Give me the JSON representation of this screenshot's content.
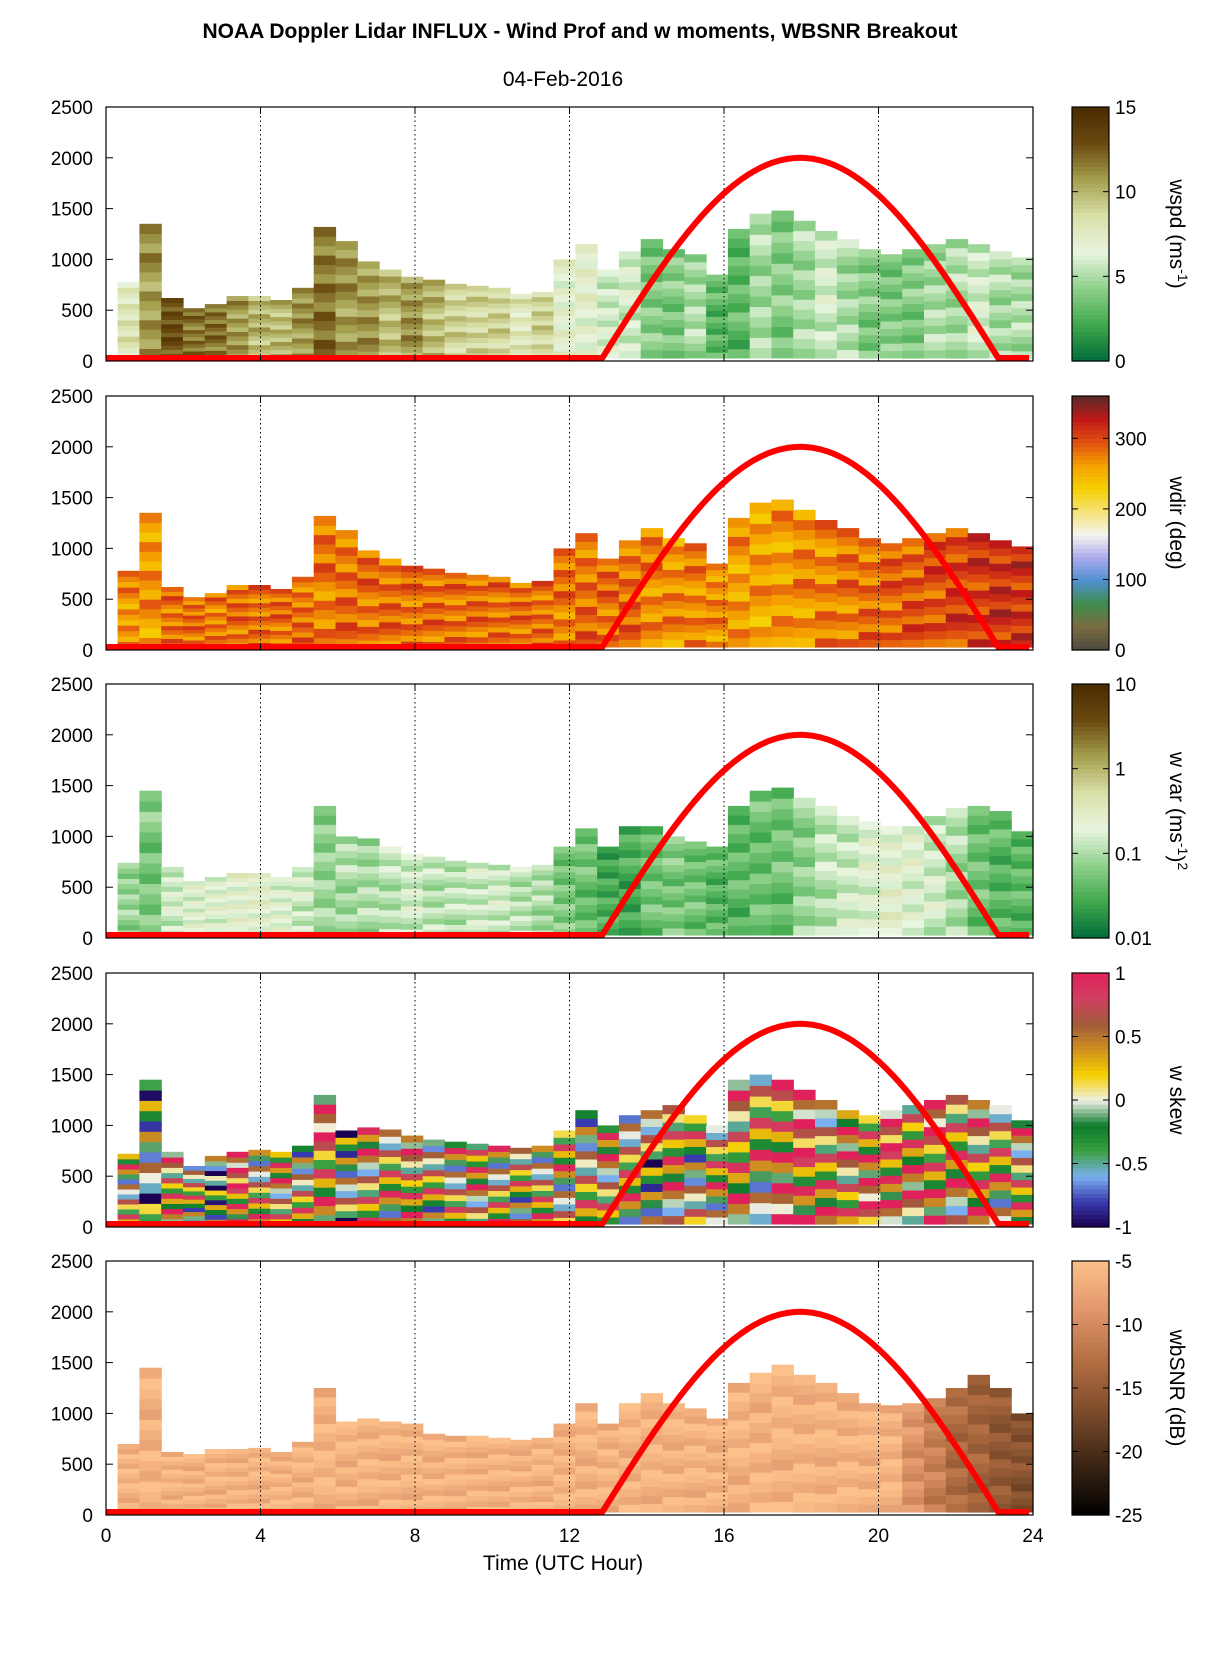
{
  "title": "NOAA Doppler Lidar INFLUX - Wind Prof and w moments, WBSNR Breakout",
  "subtitle": "04-Feb-2016",
  "xlabel": "Time (UTC Hour)",
  "chart_data": [
    {
      "type": "heatmap",
      "field": "wspd",
      "colorbar_label": "wspd (ms-1)",
      "colorbar_label_base": "wspd (ms",
      "colorbar_label_sup": "-1",
      "colorbar_label_end": ")",
      "colorbar_ticks": [
        "15",
        "10",
        "5",
        "0"
      ],
      "clim": [
        0,
        15
      ],
      "colormap": [
        "#006b3a",
        "#3fa84c",
        "#8ed08a",
        "#e9f5e0",
        "#d9e0a8",
        "#a4a04e",
        "#6b4a10",
        "#4a2a00"
      ],
      "ylim": [
        0,
        2500
      ],
      "yticks": [
        "2500",
        "2000",
        "1500",
        "1000",
        "500",
        "0"
      ],
      "top_heights_m": [
        780,
        1350,
        620,
        520,
        560,
        640,
        640,
        600,
        720,
        1320,
        1180,
        980,
        900,
        830,
        800,
        760,
        740,
        720,
        660,
        680,
        1000,
        1150,
        900,
        1080,
        1200,
        1100,
        1050,
        850,
        1300,
        1450,
        1480,
        1380,
        1280,
        1200,
        1100,
        1050,
        1100,
        1150,
        1200,
        1150,
        1080,
        1020
      ],
      "cell_values": [
        8,
        11,
        13,
        12,
        12,
        11,
        10,
        10,
        11,
        12,
        11,
        11,
        10,
        11,
        10,
        9,
        9,
        9,
        8,
        9,
        7,
        7,
        6,
        6,
        4,
        4,
        5,
        3,
        3,
        5,
        4,
        5,
        6,
        5,
        4,
        4,
        4,
        5,
        5,
        6,
        5,
        5
      ]
    },
    {
      "type": "heatmap",
      "field": "wdir",
      "colorbar_label": "wdir (deg)",
      "colorbar_ticks": [
        "300",
        "200",
        "100",
        "0"
      ],
      "clim": [
        0,
        360
      ],
      "colormap": [
        "#4a4a40",
        "#7a6a40",
        "#3e8c4a",
        "#4f8fd0",
        "#aaaaee",
        "#f5f5f0",
        "#f5e27a",
        "#f5d000",
        "#f5a000",
        "#e05010",
        "#c01818",
        "#5a2a2a"
      ],
      "ylim": [
        0,
        2500
      ],
      "yticks": [
        "2500",
        "2000",
        "1500",
        "1000",
        "500",
        "0"
      ],
      "top_heights_m": [
        780,
        1350,
        620,
        520,
        560,
        640,
        640,
        600,
        720,
        1320,
        1180,
        980,
        900,
        830,
        800,
        760,
        740,
        720,
        660,
        680,
        1000,
        1150,
        900,
        1080,
        1200,
        1100,
        1050,
        850,
        1300,
        1450,
        1480,
        1380,
        1280,
        1200,
        1100,
        1050,
        1100,
        1150,
        1200,
        1150,
        1080,
        1020
      ],
      "cell_values": [
        270,
        265,
        285,
        285,
        280,
        285,
        285,
        285,
        285,
        280,
        285,
        285,
        285,
        285,
        285,
        285,
        285,
        285,
        285,
        285,
        280,
        285,
        285,
        285,
        275,
        270,
        275,
        270,
        265,
        260,
        265,
        270,
        275,
        280,
        285,
        290,
        295,
        300,
        305,
        310,
        315,
        315
      ]
    },
    {
      "type": "heatmap",
      "field": "w var",
      "colorbar_label": "w var (ms-1)2",
      "colorbar_label_base": "w var (ms",
      "colorbar_label_sup": "-1",
      "colorbar_label_end": ")",
      "colorbar_label_sup2": "2",
      "colorbar_ticks": [
        "10",
        "1",
        "0.1",
        "0.01"
      ],
      "clim": [
        0.01,
        10
      ],
      "log_scale": true,
      "colormap": [
        "#006b3a",
        "#3fa84c",
        "#8ed08a",
        "#e9f5e0",
        "#d9e0a8",
        "#a4a04e",
        "#6b4a10",
        "#4a2a00"
      ],
      "ylim": [
        0,
        2500
      ],
      "yticks": [
        "2500",
        "2000",
        "1500",
        "1000",
        "500",
        "0"
      ],
      "top_heights_m": [
        740,
        1450,
        700,
        560,
        600,
        640,
        640,
        600,
        700,
        1300,
        1000,
        980,
        900,
        830,
        800,
        760,
        740,
        720,
        700,
        720,
        900,
        1080,
        900,
        1100,
        1100,
        1000,
        950,
        900,
        1300,
        1450,
        1480,
        1380,
        1300,
        1200,
        1150,
        1100,
        1100,
        1200,
        1280,
        1300,
        1250,
        1050
      ],
      "cell_values": [
        0.08,
        0.06,
        0.15,
        0.2,
        0.2,
        0.25,
        0.25,
        0.2,
        0.15,
        0.08,
        0.1,
        0.1,
        0.12,
        0.15,
        0.12,
        0.12,
        0.15,
        0.15,
        0.12,
        0.1,
        0.06,
        0.05,
        0.03,
        0.03,
        0.05,
        0.06,
        0.05,
        0.04,
        0.04,
        0.05,
        0.05,
        0.08,
        0.12,
        0.15,
        0.2,
        0.25,
        0.2,
        0.15,
        0.1,
        0.05,
        0.04,
        0.04
      ]
    },
    {
      "type": "heatmap",
      "field": "w skew",
      "colorbar_label": "w skew",
      "colorbar_ticks": [
        "1",
        "0.5",
        "0",
        "-0.5",
        "-1"
      ],
      "clim": [
        -1,
        1
      ],
      "colormap": [
        "#1a0050",
        "#3a3ab0",
        "#7ab0f0",
        "#3aa040",
        "#0a7a2a",
        "#f0f0e8",
        "#f5d000",
        "#d09020",
        "#a05a3a",
        "#d04060",
        "#e0205a"
      ],
      "ylim": [
        0,
        2500
      ],
      "yticks": [
        "2500",
        "2000",
        "1500",
        "1000",
        "500",
        "0"
      ],
      "top_heights_m": [
        720,
        1450,
        740,
        600,
        700,
        740,
        760,
        740,
        800,
        1300,
        950,
        980,
        960,
        900,
        860,
        840,
        820,
        800,
        780,
        800,
        950,
        1150,
        1000,
        1100,
        1150,
        1200,
        1100,
        1000,
        1450,
        1500,
        1450,
        1350,
        1250,
        1150,
        1100,
        1150,
        1200,
        1250,
        1300,
        1250,
        1200,
        1050
      ],
      "cell_values": [
        0.2,
        -0.2,
        0.4,
        0.1,
        -0.3,
        0.6,
        0.2,
        0.3,
        0.1,
        0.5,
        -0.1,
        0.3,
        0.2,
        0.4,
        0.1,
        0.2,
        0.3,
        0.2,
        0.1,
        0.2,
        0.2,
        0.1,
        0.3,
        0.2,
        -0.1,
        0.3,
        0.1,
        0.2,
        0.4,
        0.2,
        0.5,
        0.6,
        0.3,
        0.4,
        0.5,
        0.6,
        0.4,
        0.5,
        0.3,
        0.4,
        0.2,
        0.3
      ]
    },
    {
      "type": "heatmap",
      "field": "wbSNR",
      "colorbar_label": "wbSNR (dB)",
      "colorbar_ticks": [
        "-5",
        "-10",
        "-15",
        "-20",
        "-25"
      ],
      "clim": [
        -25,
        -5
      ],
      "colormap": [
        "#000000",
        "#3a2414",
        "#7a4a2a",
        "#b06c40",
        "#e0946a",
        "#fcc08a"
      ],
      "ylim": [
        0,
        2500
      ],
      "yticks": [
        "2500",
        "2000",
        "1500",
        "1000",
        "500",
        "0"
      ],
      "top_heights_m": [
        700,
        1450,
        620,
        600,
        650,
        650,
        660,
        620,
        720,
        1250,
        920,
        950,
        920,
        900,
        800,
        780,
        780,
        760,
        740,
        760,
        900,
        1100,
        900,
        1100,
        1200,
        1100,
        1050,
        950,
        1300,
        1400,
        1480,
        1380,
        1300,
        1200,
        1100,
        1080,
        1100,
        1150,
        1250,
        1380,
        1250,
        1000
      ],
      "cell_values": [
        -6,
        -6,
        -6,
        -6,
        -6,
        -6,
        -6,
        -6,
        -6,
        -6,
        -6,
        -6,
        -6,
        -6,
        -6,
        -6,
        -6,
        -6,
        -6,
        -6,
        -6,
        -6,
        -6,
        -6,
        -6,
        -6,
        -6,
        -6,
        -6,
        -6,
        -6,
        -6,
        -6,
        -6,
        -6,
        -6,
        -9,
        -11,
        -13,
        -14,
        -15,
        -16
      ]
    }
  ],
  "xaxis": {
    "xlim": [
      0,
      24
    ],
    "ticks": [
      "0",
      "4",
      "8",
      "12",
      "16",
      "20",
      "24"
    ],
    "gridlines_at": [
      4,
      8,
      12,
      16,
      20,
      24
    ]
  },
  "overlay": {
    "description": "red curve",
    "color": "#ff0000",
    "rise_hour": 12.85,
    "set_hour": 23.1,
    "peak_height_m": 2000,
    "baseline_m": 30
  }
}
